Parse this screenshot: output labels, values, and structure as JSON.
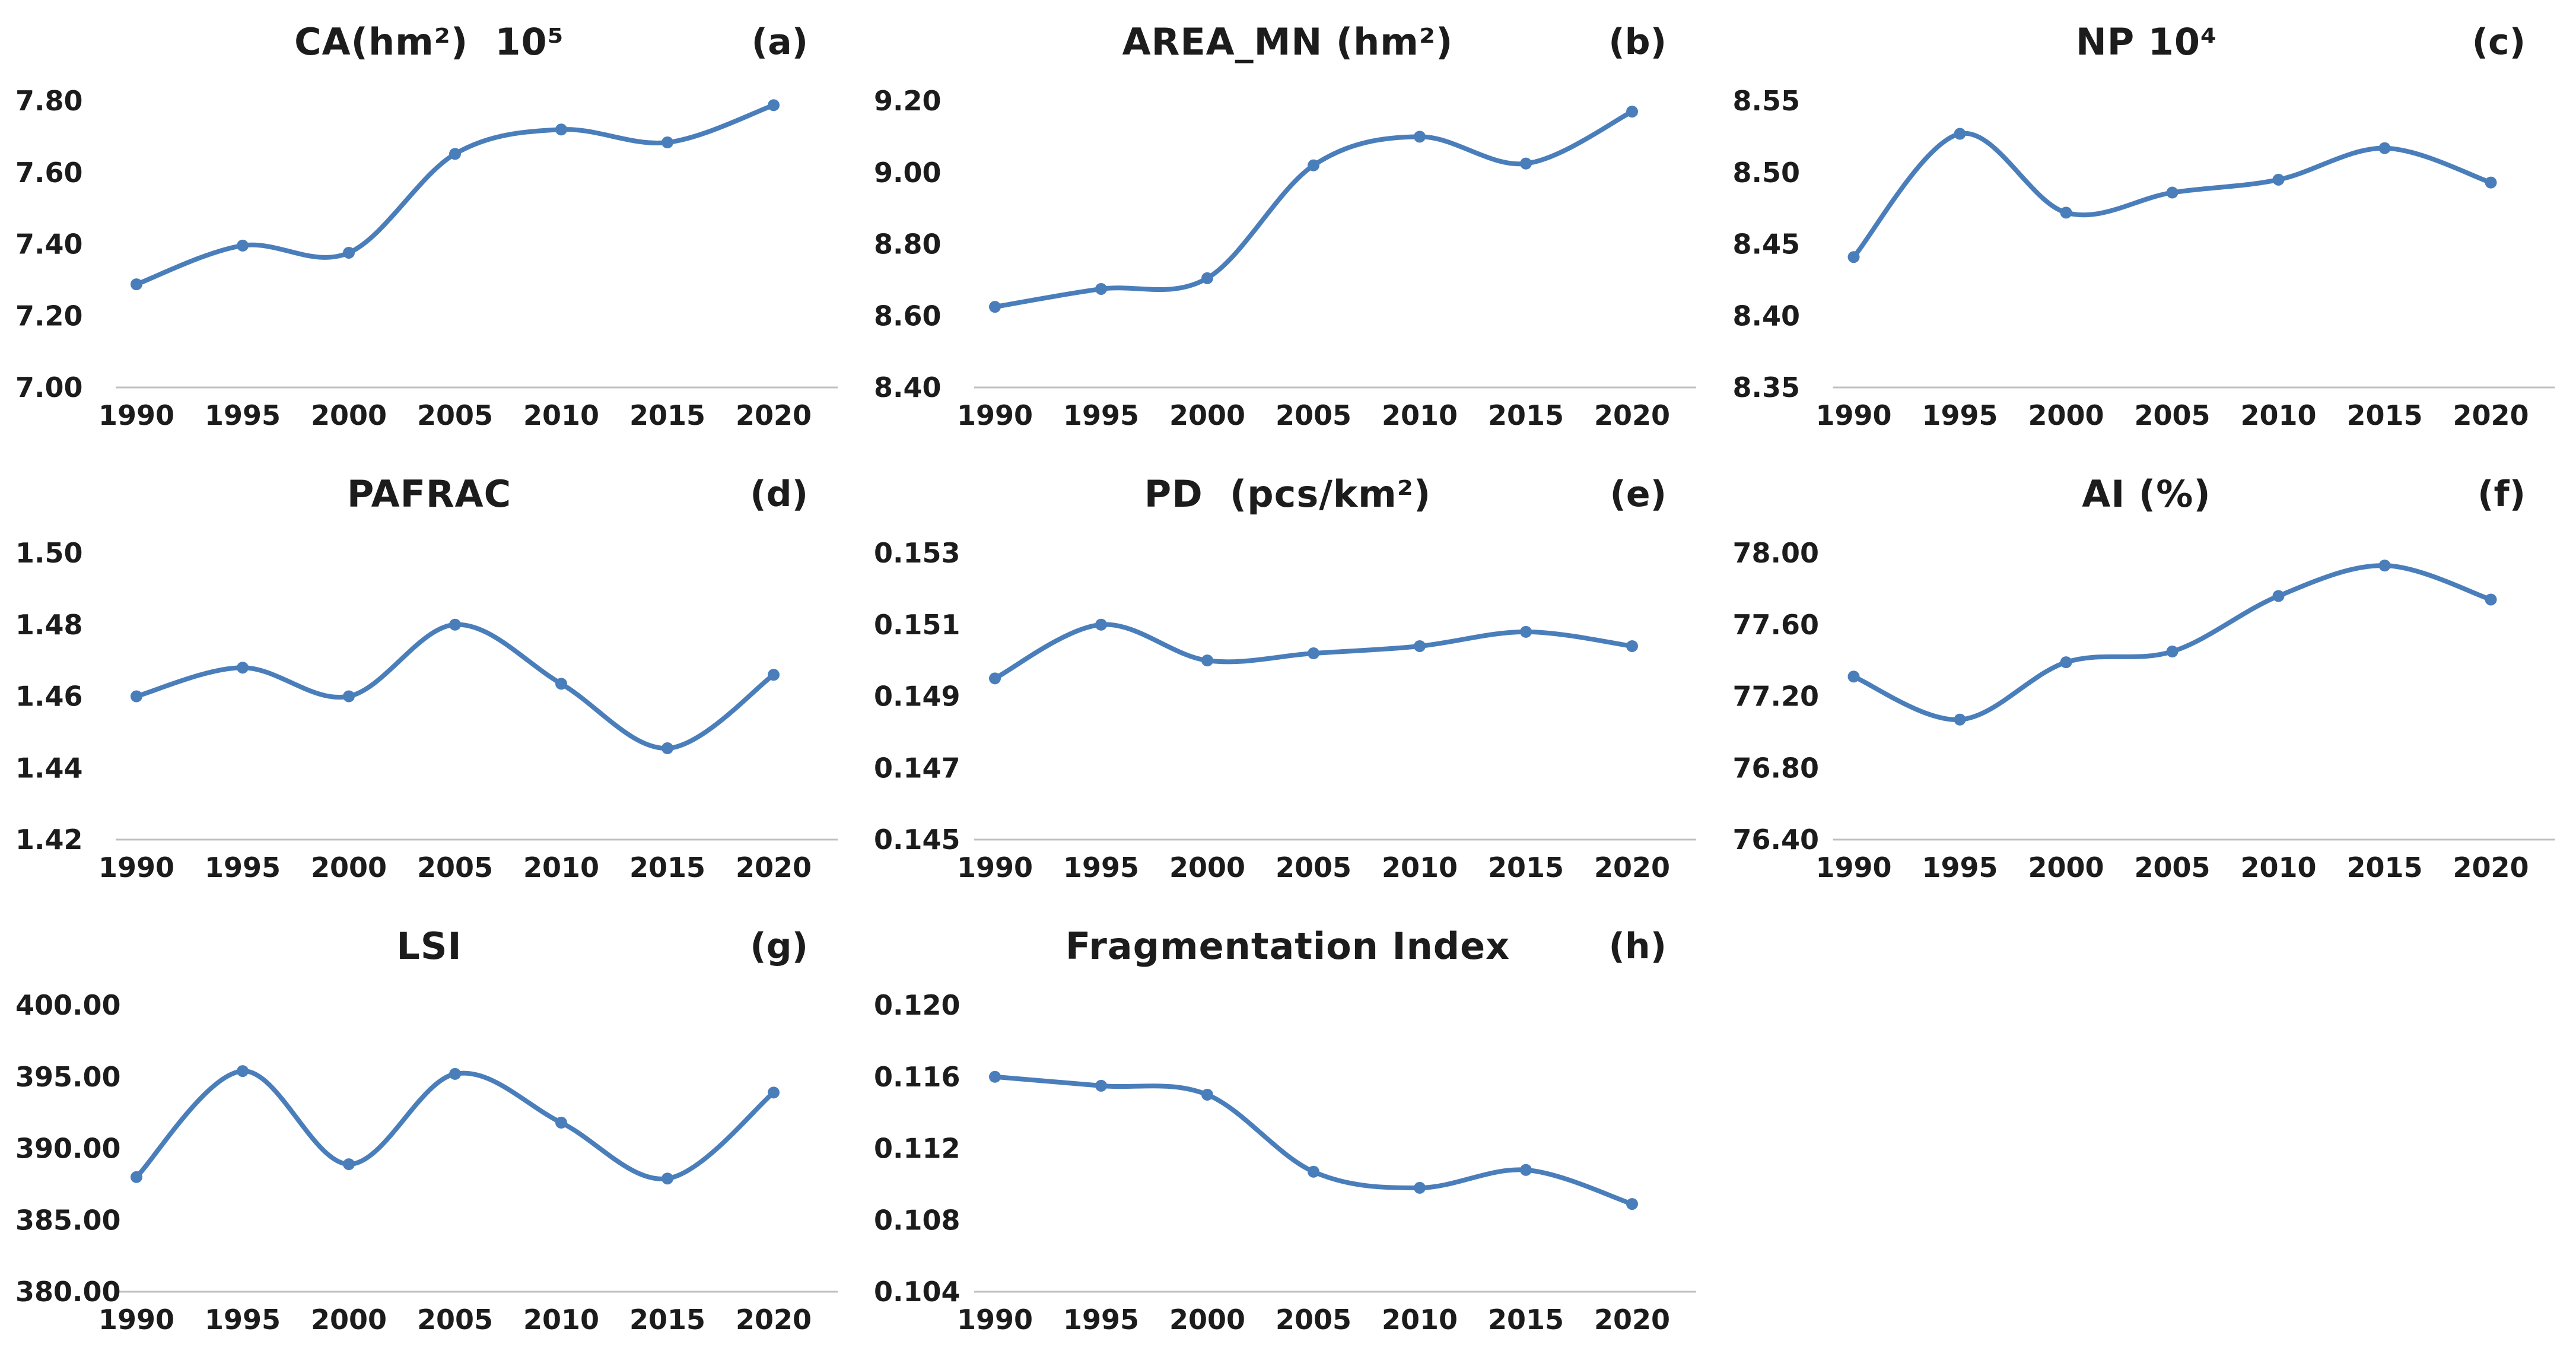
{
  "figure": {
    "background": "#ffffff",
    "line_color": "#4a7ebb",
    "text_color": "#1c1c1c",
    "axis_line_color": "#c0c0c0"
  },
  "chart_data": [
    {
      "id": "a",
      "type": "line",
      "title": "CA(hm²)  10⁵",
      "panel_label": "(a)",
      "categories": [
        "1990",
        "1995",
        "2000",
        "2005",
        "2010",
        "2015",
        "2020"
      ],
      "values": [
        7.288,
        7.396,
        7.376,
        7.652,
        7.72,
        7.684,
        7.788
      ],
      "yticks": [
        7.0,
        7.2,
        7.4,
        7.6,
        7.8
      ],
      "ytick_labels": [
        "7.00",
        "7.20",
        "7.40",
        "7.60",
        "7.80"
      ],
      "ylim": [
        7.0,
        7.9
      ],
      "xlabel": "",
      "ylabel": "",
      "grid": false,
      "legend": false
    },
    {
      "id": "b",
      "type": "line",
      "title": "AREA_MN (hm²)",
      "panel_label": "(b)",
      "categories": [
        "1990",
        "1995",
        "2000",
        "2005",
        "2010",
        "2015",
        "2020"
      ],
      "values": [
        8.625,
        8.675,
        8.705,
        9.02,
        9.1,
        9.025,
        9.17
      ],
      "yticks": [
        8.4,
        8.6,
        8.8,
        9.0,
        9.2
      ],
      "ytick_labels": [
        "8.40",
        "8.60",
        "8.80",
        "9.00",
        "9.20"
      ],
      "ylim": [
        8.4,
        9.3
      ],
      "xlabel": "",
      "ylabel": "",
      "grid": false,
      "legend": false
    },
    {
      "id": "c",
      "type": "line",
      "title": "NP 10⁴",
      "panel_label": "(c)",
      "categories": [
        "1990",
        "1995",
        "2000",
        "2005",
        "2010",
        "2015",
        "2020"
      ],
      "values": [
        8.441,
        8.527,
        8.472,
        8.486,
        8.495,
        8.517,
        8.493
      ],
      "yticks": [
        8.35,
        8.4,
        8.45,
        8.5,
        8.55
      ],
      "ytick_labels": [
        "8.35",
        "8.40",
        "8.45",
        "8.50",
        "8.55"
      ],
      "ylim": [
        8.35,
        8.575
      ],
      "xlabel": "",
      "ylabel": "",
      "grid": false,
      "legend": false
    },
    {
      "id": "d",
      "type": "line",
      "title": "PAFRAC",
      "panel_label": "(d)",
      "categories": [
        "1990",
        "1995",
        "2000",
        "2005",
        "2010",
        "2015",
        "2020"
      ],
      "values": [
        1.46,
        1.468,
        1.46,
        1.48,
        1.4635,
        1.4455,
        1.466
      ],
      "yticks": [
        1.42,
        1.44,
        1.46,
        1.48,
        1.5
      ],
      "ytick_labels": [
        "1.42",
        "1.44",
        "1.46",
        "1.48",
        "1.50"
      ],
      "ylim": [
        1.42,
        1.51
      ],
      "xlabel": "",
      "ylabel": "",
      "grid": false,
      "legend": false
    },
    {
      "id": "e",
      "type": "line",
      "title": "PD  (pcs/km²)",
      "panel_label": "(e)",
      "categories": [
        "1990",
        "1995",
        "2000",
        "2005",
        "2010",
        "2015",
        "2020"
      ],
      "values": [
        0.1495,
        0.151,
        0.15,
        0.1502,
        0.1504,
        0.1508,
        0.1504
      ],
      "yticks": [
        0.145,
        0.147,
        0.149,
        0.151,
        0.153
      ],
      "ytick_labels": [
        "0.145",
        "0.147",
        "0.149",
        "0.151",
        "0.153"
      ],
      "ylim": [
        0.145,
        0.154
      ],
      "xlabel": "",
      "ylabel": "",
      "grid": false,
      "legend": false
    },
    {
      "id": "f",
      "type": "line",
      "title": "AI (%)",
      "panel_label": "(f)",
      "categories": [
        "1990",
        "1995",
        "2000",
        "2005",
        "2010",
        "2015",
        "2020"
      ],
      "values": [
        77.31,
        77.07,
        77.39,
        77.45,
        77.76,
        77.93,
        77.74
      ],
      "yticks": [
        76.4,
        76.8,
        77.2,
        77.6,
        78.0
      ],
      "ytick_labels": [
        "76.40",
        "76.80",
        "77.20",
        "77.60",
        "78.00"
      ],
      "ylim": [
        76.4,
        78.2
      ],
      "xlabel": "",
      "ylabel": "",
      "grid": false,
      "legend": false
    },
    {
      "id": "g",
      "type": "line",
      "title": "LSI",
      "panel_label": "(g)",
      "categories": [
        "1990",
        "1995",
        "2000",
        "2005",
        "2010",
        "2015",
        "2020"
      ],
      "values": [
        388.0,
        395.4,
        388.9,
        395.2,
        391.8,
        387.9,
        393.9
      ],
      "yticks": [
        380,
        385,
        390,
        395,
        400
      ],
      "ytick_labels": [
        "380.00",
        "385.00",
        "390.00",
        "395.00",
        "400.00"
      ],
      "ylim": [
        380,
        402.5
      ],
      "xlabel": "",
      "ylabel": "",
      "grid": false,
      "legend": false
    },
    {
      "id": "h",
      "type": "line",
      "title": "Fragmentation Index",
      "panel_label": "(h)",
      "categories": [
        "1990",
        "1995",
        "2000",
        "2005",
        "2010",
        "2015",
        "2020"
      ],
      "values": [
        0.116,
        0.1155,
        0.115,
        0.1107,
        0.1098,
        0.1108,
        0.1089
      ],
      "yticks": [
        0.104,
        0.108,
        0.112,
        0.116,
        0.12
      ],
      "ytick_labels": [
        "0.104",
        "0.108",
        "0.112",
        "0.116",
        "0.120"
      ],
      "ylim": [
        0.104,
        0.122
      ],
      "xlabel": "",
      "ylabel": "",
      "grid": false,
      "legend": false
    }
  ]
}
